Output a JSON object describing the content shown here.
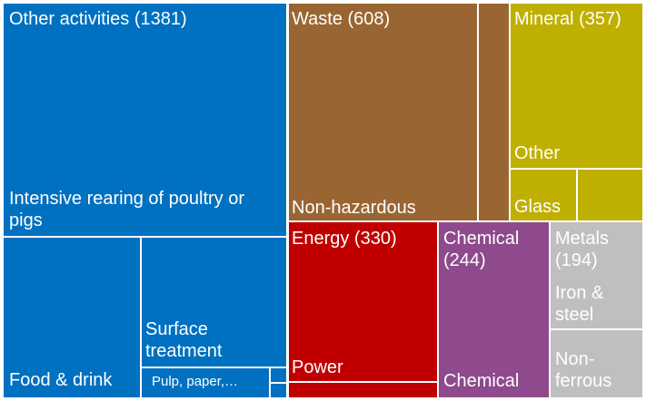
{
  "chart_data": {
    "type": "treemap",
    "title": "",
    "groups": [
      {
        "key": "other",
        "label": "Other activities (1381)",
        "name": "Other activities",
        "value": 1381,
        "color": "#0070C0",
        "children": [
          {
            "key": "poultry",
            "label": "Intensive rearing of poultry or pigs"
          },
          {
            "key": "food",
            "label": "Food & drink"
          },
          {
            "key": "surface",
            "label": "Surface treatment"
          },
          {
            "key": "pulp",
            "label": "Pulp, paper,…"
          },
          {
            "key": "other_s1",
            "label": ""
          },
          {
            "key": "other_s2",
            "label": ""
          }
        ]
      },
      {
        "key": "waste",
        "label": "Waste (608)",
        "name": "Waste",
        "value": 608,
        "color": "#996633",
        "children": [
          {
            "key": "nonhaz",
            "label": "Non-hazardous"
          },
          {
            "key": "waste_s1",
            "label": ""
          }
        ]
      },
      {
        "key": "mineral",
        "label": "Mineral (357)",
        "name": "Mineral",
        "value": 357,
        "color": "#BFAF00",
        "children": [
          {
            "key": "min_other",
            "label": "Other"
          },
          {
            "key": "glass",
            "label": "Glass"
          },
          {
            "key": "min_s1",
            "label": ""
          }
        ]
      },
      {
        "key": "energy",
        "label": "Energy (330)",
        "name": "Energy",
        "value": 330,
        "color": "#C00000",
        "children": [
          {
            "key": "power",
            "label": "Power"
          },
          {
            "key": "energy_s1",
            "label": ""
          }
        ]
      },
      {
        "key": "chemical",
        "label": "Chemical (244)",
        "name": "Chemical",
        "value": 244,
        "color": "#8E4A8C",
        "children": [
          {
            "key": "chem_sub",
            "label": "Chemical"
          }
        ]
      },
      {
        "key": "metals",
        "label": "Metals (194)",
        "name": "Metals",
        "value": 194,
        "color": "#BFBFBF",
        "children": [
          {
            "key": "iron",
            "label": "Iron & steel"
          },
          {
            "key": "nonferrous",
            "label": "Non-ferrous"
          }
        ]
      }
    ]
  }
}
